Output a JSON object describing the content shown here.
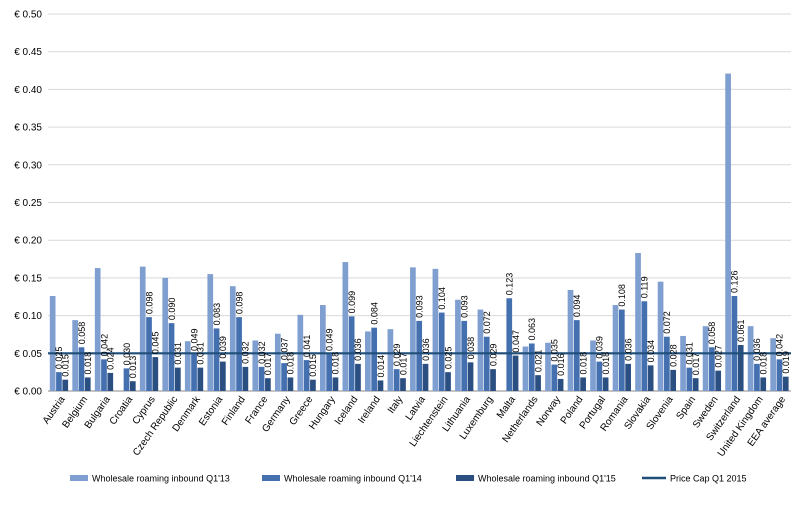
{
  "chart_data": {
    "type": "bar",
    "categories": [
      "Austria",
      "Belgium",
      "Bulgaria",
      "Croatia",
      "Cyprus",
      "Czech Republic",
      "Denmark",
      "Estonia",
      "Finland",
      "France",
      "Germany",
      "Greece",
      "Hungary",
      "Iceland",
      "Ireland",
      "Italy",
      "Latvia",
      "Liechtenstein",
      "Lithuania",
      "Luxemburg",
      "Malta",
      "Netherlands",
      "Norway",
      "Poland",
      "Portugal",
      "Romania",
      "Slovakia",
      "Slovenia",
      "Spain",
      "Sweden",
      "Switzerland",
      "United Kingdom",
      "EEA average"
    ],
    "series": [
      {
        "name": "Wholesale roaming inbound Q1'13",
        "color": "#7f9fd0",
        "values": [
          0.126,
          0.094,
          0.163,
          null,
          0.165,
          0.15,
          0.066,
          0.155,
          0.139,
          0.067,
          0.076,
          0.101,
          0.114,
          0.171,
          0.079,
          0.082,
          0.164,
          0.162,
          0.121,
          0.108,
          null,
          0.059,
          0.064,
          0.134,
          0.067,
          0.114,
          0.183,
          0.145,
          0.073,
          0.086,
          0.421,
          0.086,
          0.07
        ]
      },
      {
        "name": "Wholesale roaming inbound Q1'14",
        "color": "#4470b0",
        "values": [
          0.025,
          0.058,
          0.042,
          0.03,
          0.098,
          0.09,
          0.049,
          0.083,
          0.098,
          0.032,
          0.037,
          0.041,
          0.049,
          0.099,
          0.084,
          0.029,
          0.093,
          0.104,
          0.093,
          0.072,
          0.123,
          0.063,
          0.035,
          0.094,
          0.039,
          0.108,
          0.119,
          0.072,
          0.031,
          0.058,
          0.126,
          0.036,
          0.042
        ]
      },
      {
        "name": "Wholesale roaming inbound Q1'15",
        "color": "#2a4f80",
        "values": [
          0.015,
          0.018,
          0.024,
          0.013,
          0.045,
          0.031,
          0.031,
          0.039,
          0.032,
          0.017,
          0.018,
          0.015,
          0.018,
          0.036,
          0.014,
          0.017,
          0.036,
          0.025,
          0.038,
          0.029,
          0.047,
          0.021,
          0.016,
          0.018,
          0.018,
          0.036,
          0.034,
          0.028,
          0.017,
          0.027,
          0.061,
          0.018,
          0.019
        ]
      }
    ],
    "value_labels": {
      "Wholesale roaming inbound Q1'14": [
        "0.025",
        "0.058",
        "0.042",
        "0.030",
        "0.098",
        "0.090",
        "0.049",
        "0.083",
        "0.098",
        "0.032",
        "0.037",
        "0.041",
        "0.049",
        "0.099",
        "0.084",
        "0.029",
        "0.093",
        "0.104",
        "0.093",
        "0.072",
        "0.123",
        "0.063",
        "0.035",
        "0.094",
        "0.039",
        "0.108",
        "0.119",
        "0.072",
        "0.031",
        "0.058",
        "0.126",
        "0.036",
        "0.042"
      ],
      "Wholesale roaming inbound Q1'15": [
        "0.015",
        "0.018",
        "0.024",
        "0.013",
        "0.045",
        "0.031",
        "0.031",
        "0.039",
        "0.032",
        "0.017",
        "0.018",
        "0.015",
        "0.018",
        "0.036",
        "0.014",
        "0.017",
        "0.036",
        "0.025",
        "0.038",
        "0.029",
        "0.047",
        "0.021",
        "0.016",
        "0.018",
        "0.018",
        "0.036",
        "0.034",
        "0.028",
        "0.017",
        "0.027",
        "0.061",
        "0.018",
        "0.019"
      ]
    },
    "price_cap": {
      "name": "Price Cap Q1 2015",
      "value": 0.05,
      "color": "#1f4e79"
    },
    "y_ticks": [
      "€ 0.00",
      "€ 0.05",
      "€ 0.10",
      "€ 0.15",
      "€ 0.20",
      "€ 0.25",
      "€ 0.30",
      "€ 0.35",
      "€ 0.40",
      "€ 0.45",
      "€ 0.50"
    ],
    "ylim": [
      0,
      0.5
    ],
    "grid": true,
    "legend_position": "bottom",
    "title": "",
    "xlabel": "",
    "ylabel": ""
  }
}
